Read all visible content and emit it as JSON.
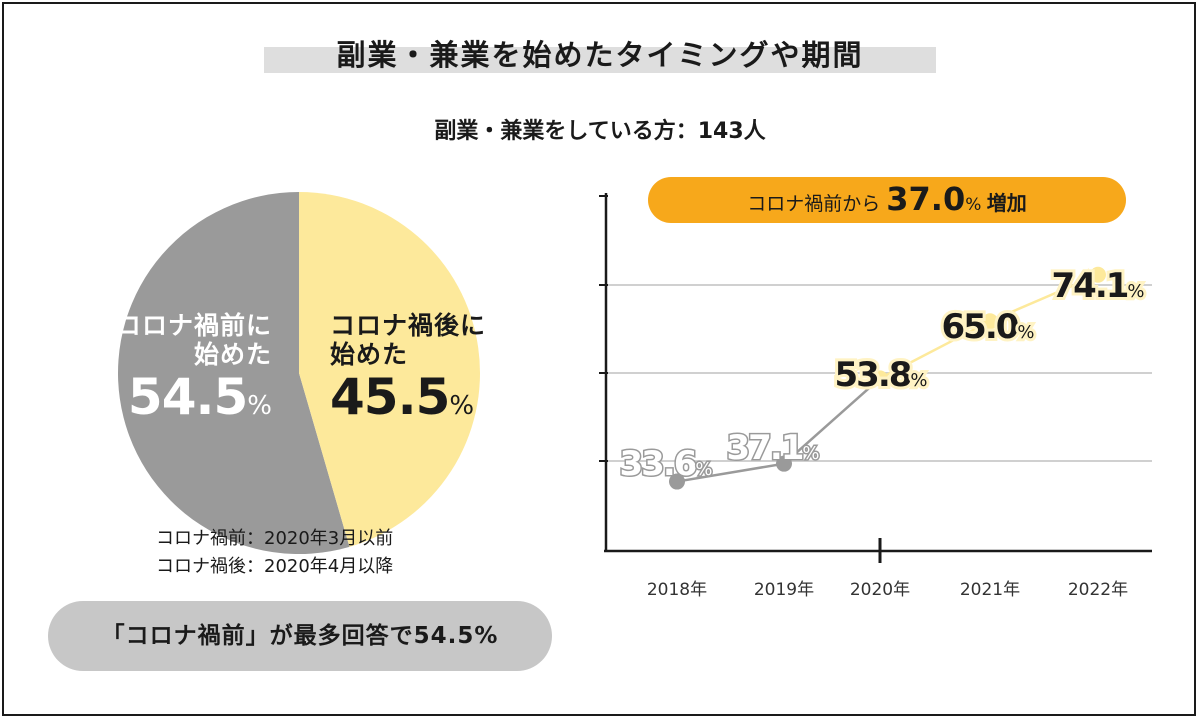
{
  "title": "副業・兼業を始めたタイミングや期間",
  "subtitle": "副業・兼業をしている方：143人",
  "colors": {
    "before": "#9a9a9a",
    "after": "#fde99b",
    "accent": "#f7a81b",
    "grid": "#d0d0d0",
    "axis": "#1a1a1a"
  },
  "pie": {
    "before": {
      "line1": "コロナ禍前に",
      "line2": "始めた",
      "value": "54.5",
      "unit": "%"
    },
    "after": {
      "line1": "コロナ禍後に",
      "line2": "始めた",
      "value": "45.5",
      "unit": "%"
    }
  },
  "definitions": [
    "コロナ禍前：2020年3月以前",
    "コロナ禍後：2020年4月以降"
  ],
  "highlight": "「コロナ禍前」が最多回答で54.5%",
  "chart_data": [
    {
      "type": "pie",
      "slices": [
        {
          "label": "コロナ禍前に始めた",
          "value": 54.5
        },
        {
          "label": "コロナ禍後に始めた",
          "value": 45.5
        }
      ]
    },
    {
      "type": "line",
      "categories": [
        "2018年",
        "2019年",
        "2020年",
        "2021年",
        "2022年"
      ],
      "values": [
        33.6,
        37.1,
        53.8,
        65.0,
        74.1
      ],
      "value_labels": [
        "33.6",
        "37.1",
        "53.8",
        "65.0",
        "74.1"
      ],
      "unit": "%",
      "ylim": [
        20,
        80
      ],
      "grid": true,
      "annotation": {
        "prefix": "コロナ禍前から",
        "value": "37.0",
        "unit": "%",
        "suffix": "増加"
      }
    }
  ]
}
